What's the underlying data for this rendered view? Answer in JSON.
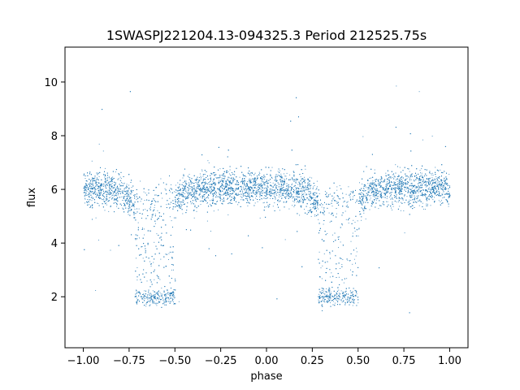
{
  "chart_data": {
    "type": "scatter",
    "title": "1SWASPJ221204.13-094325.3 Period 212525.75s",
    "xlabel": "phase",
    "ylabel": "flux",
    "xlim": [
      -1.1,
      1.1
    ],
    "ylim": [
      0.1,
      11.3
    ],
    "x_ticks": [
      -1.0,
      -0.75,
      -0.5,
      -0.25,
      0.0,
      0.25,
      0.5,
      0.75,
      1.0
    ],
    "x_tick_labels": [
      "−1.00",
      "−0.75",
      "−0.50",
      "−0.25",
      "0.00",
      "0.25",
      "0.50",
      "0.75",
      "1.00"
    ],
    "y_ticks": [
      2,
      4,
      6,
      8,
      10
    ],
    "y_tick_labels": [
      "2",
      "4",
      "6",
      "8",
      "10"
    ],
    "grid": false,
    "marker_color": "#1f77b4",
    "series": [
      {
        "description_source": "light curve folded on period, shown over two cycles",
        "baseline_flux": 6.0,
        "points_approx": [
          {
            "x": -1.0,
            "y": 5.95
          },
          {
            "x": -0.9,
            "y": 5.9
          },
          {
            "x": -0.8,
            "y": 5.8
          },
          {
            "x": -0.72,
            "y": 5.6
          },
          {
            "x": -0.7,
            "y": 2.0
          },
          {
            "x": -0.65,
            "y": 2.05
          },
          {
            "x": -0.6,
            "y": 2.0
          },
          {
            "x": -0.55,
            "y": 1.95
          },
          {
            "x": -0.52,
            "y": 2.0
          },
          {
            "x": -0.5,
            "y": 5.5
          },
          {
            "x": -0.45,
            "y": 5.7
          },
          {
            "x": -0.35,
            "y": 5.85
          },
          {
            "x": -0.25,
            "y": 5.95
          },
          {
            "x": -0.15,
            "y": 6.05
          },
          {
            "x": 0.0,
            "y": 5.9
          },
          {
            "x": 0.1,
            "y": 5.8
          },
          {
            "x": 0.2,
            "y": 5.6
          },
          {
            "x": 0.28,
            "y": 5.4
          },
          {
            "x": 0.3,
            "y": 2.0
          },
          {
            "x": 0.35,
            "y": 2.05
          },
          {
            "x": 0.4,
            "y": 2.0
          },
          {
            "x": 0.45,
            "y": 1.95
          },
          {
            "x": 0.48,
            "y": 2.0
          },
          {
            "x": 0.5,
            "y": 5.5
          },
          {
            "x": 0.55,
            "y": 5.7
          },
          {
            "x": 0.65,
            "y": 5.85
          },
          {
            "x": 0.75,
            "y": 5.95
          },
          {
            "x": 0.85,
            "y": 6.05
          },
          {
            "x": 1.0,
            "y": 5.95
          }
        ]
      }
    ]
  }
}
